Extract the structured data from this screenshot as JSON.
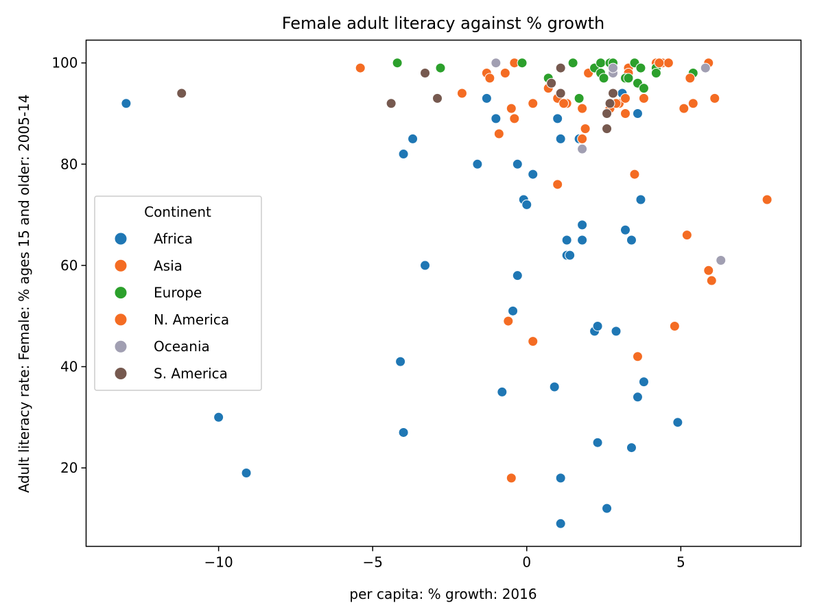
{
  "chart_data": {
    "type": "scatter",
    "title": "Female adult literacy against % growth",
    "xlabel": "per capita: % growth: 2016",
    "ylabel": "Adult literacy rate: Female: % ages 15 and older: 2005-14",
    "xlim": [
      -14.3,
      8.9
    ],
    "ylim": [
      4.5,
      104.5
    ],
    "xticks": [
      -10,
      -5,
      0,
      5
    ],
    "yticks": [
      20,
      40,
      60,
      80,
      100
    ],
    "xtick_labels": [
      "−10",
      "−5",
      "0",
      "5"
    ],
    "ytick_labels": [
      "20",
      "40",
      "60",
      "80",
      "100"
    ],
    "legend": {
      "title": "Continent",
      "position": "center-left"
    },
    "grid": false,
    "series": [
      {
        "name": "Africa",
        "color": "#1f77b4",
        "points": [
          [
            -13,
            92
          ],
          [
            -10,
            30
          ],
          [
            -9.1,
            19
          ],
          [
            -4.1,
            41
          ],
          [
            -4,
            82
          ],
          [
            -4,
            27
          ],
          [
            -3.7,
            85
          ],
          [
            -3.3,
            60
          ],
          [
            -1.6,
            80
          ],
          [
            -1.3,
            93
          ],
          [
            -1,
            89
          ],
          [
            -0.8,
            35
          ],
          [
            -0.45,
            51
          ],
          [
            -0.3,
            80
          ],
          [
            -0.3,
            58
          ],
          [
            -0.1,
            73
          ],
          [
            0,
            72
          ],
          [
            0.2,
            78
          ],
          [
            0.9,
            36
          ],
          [
            1,
            89
          ],
          [
            1.1,
            85
          ],
          [
            1.1,
            18
          ],
          [
            1.1,
            9
          ],
          [
            1.3,
            65
          ],
          [
            1.3,
            62
          ],
          [
            1.4,
            62
          ],
          [
            1.7,
            85
          ],
          [
            1.8,
            68
          ],
          [
            1.8,
            65
          ],
          [
            2.2,
            47
          ],
          [
            2.3,
            48
          ],
          [
            2.3,
            25
          ],
          [
            2.6,
            12
          ],
          [
            2.9,
            47
          ],
          [
            3.1,
            94
          ],
          [
            3.2,
            67
          ],
          [
            3.4,
            65
          ],
          [
            3.4,
            24
          ],
          [
            3.6,
            90
          ],
          [
            3.6,
            34
          ],
          [
            3.7,
            73
          ],
          [
            3.8,
            37
          ],
          [
            4.9,
            29
          ]
        ]
      },
      {
        "name": "Asia",
        "color": "#f46c23",
        "points": [
          [
            -5.4,
            99
          ],
          [
            -2.1,
            94
          ],
          [
            -1.3,
            98
          ],
          [
            -1.2,
            97
          ],
          [
            -0.9,
            86
          ],
          [
            -0.7,
            98
          ],
          [
            -0.6,
            49
          ],
          [
            -0.5,
            91
          ],
          [
            -0.5,
            18
          ],
          [
            -0.4,
            89
          ],
          [
            -0.4,
            100
          ],
          [
            0.2,
            92
          ],
          [
            0.2,
            45
          ],
          [
            0.7,
            95
          ],
          [
            1,
            76
          ],
          [
            1,
            93
          ],
          [
            1.3,
            92
          ],
          [
            1.8,
            91
          ],
          [
            1.8,
            85
          ],
          [
            1.9,
            87
          ],
          [
            2,
            98
          ],
          [
            2.7,
            91
          ],
          [
            3,
            92
          ],
          [
            3.2,
            93
          ],
          [
            3.2,
            90
          ],
          [
            3.3,
            99
          ],
          [
            3.3,
            98
          ],
          [
            3.5,
            78
          ],
          [
            3.6,
            42
          ],
          [
            3.8,
            93
          ],
          [
            4.2,
            100
          ],
          [
            4.4,
            100
          ],
          [
            4.6,
            100
          ],
          [
            4.8,
            48
          ],
          [
            5.1,
            91
          ],
          [
            5.2,
            66
          ],
          [
            5.3,
            97
          ],
          [
            5.4,
            92
          ],
          [
            5.9,
            100
          ],
          [
            5.9,
            59
          ],
          [
            6,
            57
          ],
          [
            6.1,
            93
          ],
          [
            7.8,
            73
          ]
        ]
      },
      {
        "name": "Europe",
        "color": "#2ca02c",
        "points": [
          [
            -4.2,
            100
          ],
          [
            -2.8,
            99
          ],
          [
            -0.15,
            100
          ],
          [
            0.7,
            97
          ],
          [
            1.5,
            100
          ],
          [
            1.7,
            93
          ],
          [
            2.2,
            99
          ],
          [
            2.4,
            100
          ],
          [
            2.4,
            98
          ],
          [
            2.5,
            97
          ],
          [
            2.7,
            100
          ],
          [
            2.8,
            100
          ],
          [
            3.2,
            97
          ],
          [
            3.3,
            97
          ],
          [
            3.5,
            100
          ],
          [
            3.6,
            96
          ],
          [
            3.7,
            99
          ],
          [
            3.8,
            95
          ],
          [
            4.2,
            99
          ],
          [
            4.2,
            98
          ],
          [
            5.4,
            98
          ]
        ]
      },
      {
        "name": "N. America",
        "color": "#f46c23",
        "points": [
          [
            1.2,
            92
          ],
          [
            2.9,
            92
          ],
          [
            4.3,
            100
          ],
          [
            5.3,
            97
          ]
        ]
      },
      {
        "name": "Oceania",
        "color": "#a19fb2",
        "points": [
          [
            -1,
            100
          ],
          [
            1.8,
            83
          ],
          [
            2.8,
            98
          ],
          [
            2.8,
            99
          ],
          [
            5.8,
            99
          ],
          [
            6.3,
            61
          ]
        ]
      },
      {
        "name": "S. America",
        "color": "#76594f",
        "points": [
          [
            -11.2,
            94
          ],
          [
            -4.4,
            92
          ],
          [
            -3.3,
            98
          ],
          [
            -2.9,
            93
          ],
          [
            0.8,
            96
          ],
          [
            1.1,
            94
          ],
          [
            1.1,
            99
          ],
          [
            2.6,
            90
          ],
          [
            2.6,
            87
          ],
          [
            2.7,
            92
          ],
          [
            2.8,
            94
          ]
        ]
      }
    ]
  }
}
